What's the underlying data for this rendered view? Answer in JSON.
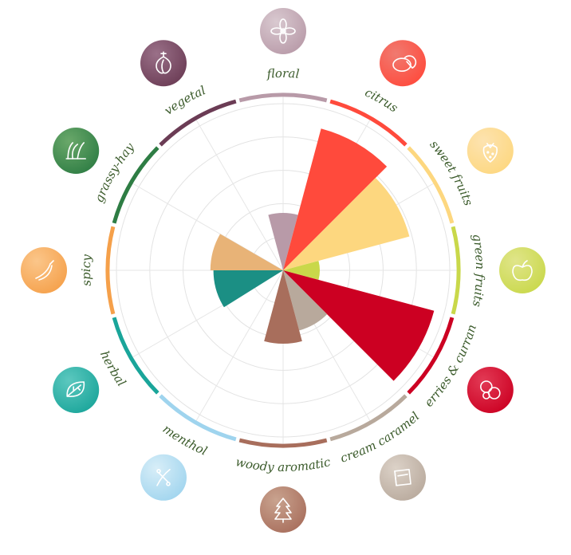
{
  "chart_data": {
    "type": "polar-area",
    "title": "",
    "r_max": 10,
    "grid_rings": [
      1,
      2,
      3,
      4,
      5
    ],
    "categories": [
      {
        "name": "floral",
        "value": 3.6,
        "color": "#b89aa8",
        "color2": "#d9c9d0",
        "icon": "flower-icon"
      },
      {
        "name": "citrus",
        "value": 9.2,
        "color": "#ff4a3c",
        "color2": "#f07a70",
        "icon": "lemon-icon"
      },
      {
        "name": "sweet fruits",
        "value": 8.2,
        "color": "#fdd77f",
        "color2": "#fde3b0",
        "icon": "strawberry-icon"
      },
      {
        "name": "green fruits",
        "value": 2.3,
        "color": "#c9d84a",
        "color2": "#e0e58a",
        "icon": "apple-icon"
      },
      {
        "name": "berries & currant",
        "value": 9.8,
        "color": "#cc0022",
        "color2": "#e23a55",
        "icon": "berries-icon"
      },
      {
        "name": "cream caramel",
        "value": 3.9,
        "color": "#b8a99c",
        "color2": "#dcd2c8",
        "icon": "caramel-icon"
      },
      {
        "name": "woody aromatic",
        "value": 4.6,
        "color": "#a86e5c",
        "color2": "#c9a38f",
        "icon": "tree-icon"
      },
      {
        "name": "menthol",
        "value": 0.0,
        "color": "#9fd4ee",
        "color2": "#d8eef8",
        "icon": "mint-icon"
      },
      {
        "name": "herbal",
        "value": 0.0,
        "color": "#1aa59a",
        "color2": "#5cc8bf",
        "icon": "leaf-icon"
      },
      {
        "name": "spicy",
        "value": 0.0,
        "color": "#f5a04a",
        "color2": "#fbc68a",
        "icon": "chili-icon"
      },
      {
        "name": "grassy-hay",
        "value": 0.0,
        "color": "#2e7d44",
        "color2": "#6aa86a",
        "icon": "grass-icon"
      },
      {
        "name": "vegetal",
        "value": 0.0,
        "color": "#6b3c55",
        "color2": "#9a7088",
        "icon": "onion-icon"
      }
    ],
    "inner_wedges": [
      {
        "name": "herbal",
        "value": 4.6,
        "color": "#1b8f84"
      },
      {
        "name": "spicy",
        "value": 4.8,
        "color": "#e8b377"
      }
    ]
  }
}
